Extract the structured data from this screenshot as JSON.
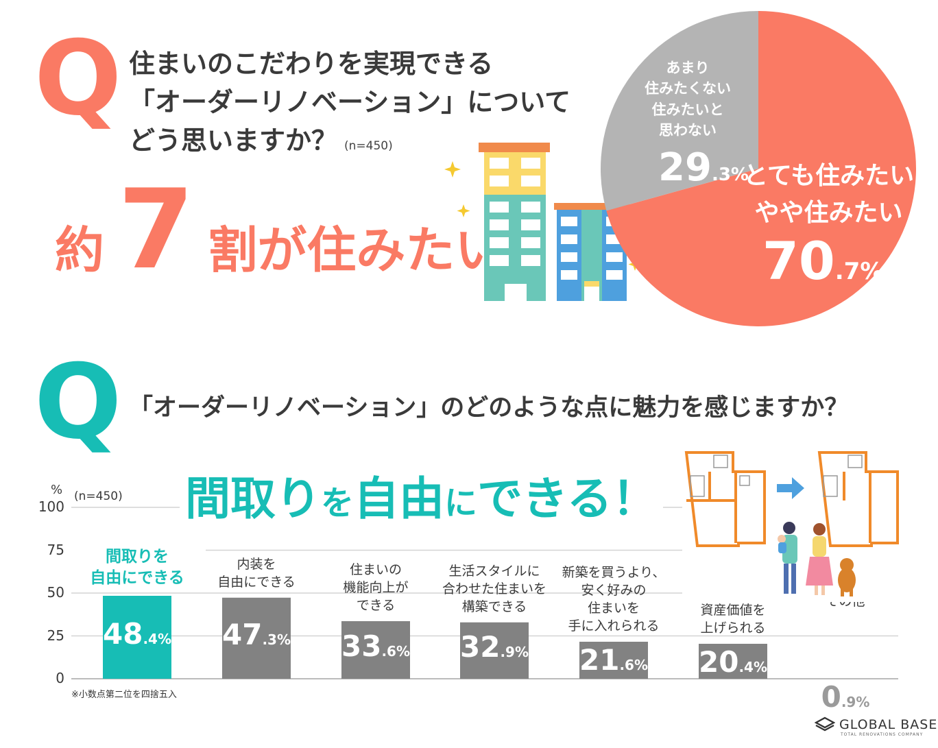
{
  "colors": {
    "coral": "#fa7a64",
    "teal": "#17bdb5",
    "gray": "#828282",
    "pie_gray": "#b4b4b4"
  },
  "q1": {
    "letter": "Q",
    "lines": [
      "住まいのこだわりを実現できる",
      "「オーダーリノベーション」について",
      "どう思いますか？"
    ],
    "n": "(n=450)",
    "headline_pre": "約",
    "headline_num": "7",
    "headline_post": "割が住みたい！"
  },
  "q2": {
    "letter": "Q",
    "text": "「オーダーリノベーション」のどのような点に魅力を感じますか？",
    "headline_part1": "間取り",
    "headline_part2": "を",
    "headline_part3": "自由",
    "headline_part4": "に",
    "headline_part5": "できる！"
  },
  "illustrations": {
    "buildings": "apartment-buildings",
    "floorplans": "floorplan-before-after",
    "family": "family-with-dog"
  },
  "chart_data": [
    {
      "type": "pie",
      "title": "住まいのこだわりを実現できる「オーダーリノベーション」についてどう思いますか？",
      "n": "(n=450)",
      "slices": [
        {
          "label_lines": [
            "とても住みたい",
            "やや住みたい"
          ],
          "value": 70.7,
          "value_main": "70",
          "value_frac": ".7%",
          "color": "#fa7a64"
        },
        {
          "label_lines": [
            "あまり",
            "住みたくない",
            "住みたいと",
            "思わない"
          ],
          "value": 29.3,
          "value_main": "29",
          "value_frac": ".3%",
          "color": "#b4b4b4"
        }
      ]
    },
    {
      "type": "bar",
      "title": "「オーダーリノベーション」のどのような点に魅力を感じますか？",
      "ylabel": "%",
      "n": "(n=450)",
      "ylim": [
        0,
        100
      ],
      "yticks": [
        "100",
        "75",
        "50",
        "25",
        "0"
      ],
      "yvals": [
        100,
        75,
        50,
        25,
        0
      ],
      "note": "※小数点第二位を四捨五入",
      "bars": [
        {
          "label_lines": [
            "間取りを",
            "自由にできる"
          ],
          "value": 48.4,
          "value_main": "48",
          "value_frac": ".4%",
          "highlight": true
        },
        {
          "label_lines": [
            "内装を",
            "自由にできる"
          ],
          "value": 47.3,
          "value_main": "47",
          "value_frac": ".3%",
          "highlight": false
        },
        {
          "label_lines": [
            "住まいの",
            "機能向上が",
            "できる"
          ],
          "value": 33.6,
          "value_main": "33",
          "value_frac": ".6%",
          "highlight": false
        },
        {
          "label_lines": [
            "生活スタイルに",
            "合わせた住まいを",
            "構築できる"
          ],
          "value": 32.9,
          "value_main": "32",
          "value_frac": ".9%",
          "highlight": false
        },
        {
          "label_lines": [
            "新築を買うより、",
            "安く好みの",
            "住まいを",
            "手に入れられる"
          ],
          "value": 21.6,
          "value_main": "21",
          "value_frac": ".6%",
          "highlight": false
        },
        {
          "label_lines": [
            "資産価値を",
            "上げられる"
          ],
          "value": 20.4,
          "value_main": "20",
          "value_frac": ".4%",
          "highlight": false
        },
        {
          "label_lines": [
            "その他"
          ],
          "value": 0.9,
          "value_main": "0",
          "value_frac": ".9%",
          "highlight": false
        }
      ]
    }
  ],
  "logo": {
    "name": "GLOBAL BASE",
    "tagline": "TOTAL RENOVATIONS COMPANY"
  }
}
